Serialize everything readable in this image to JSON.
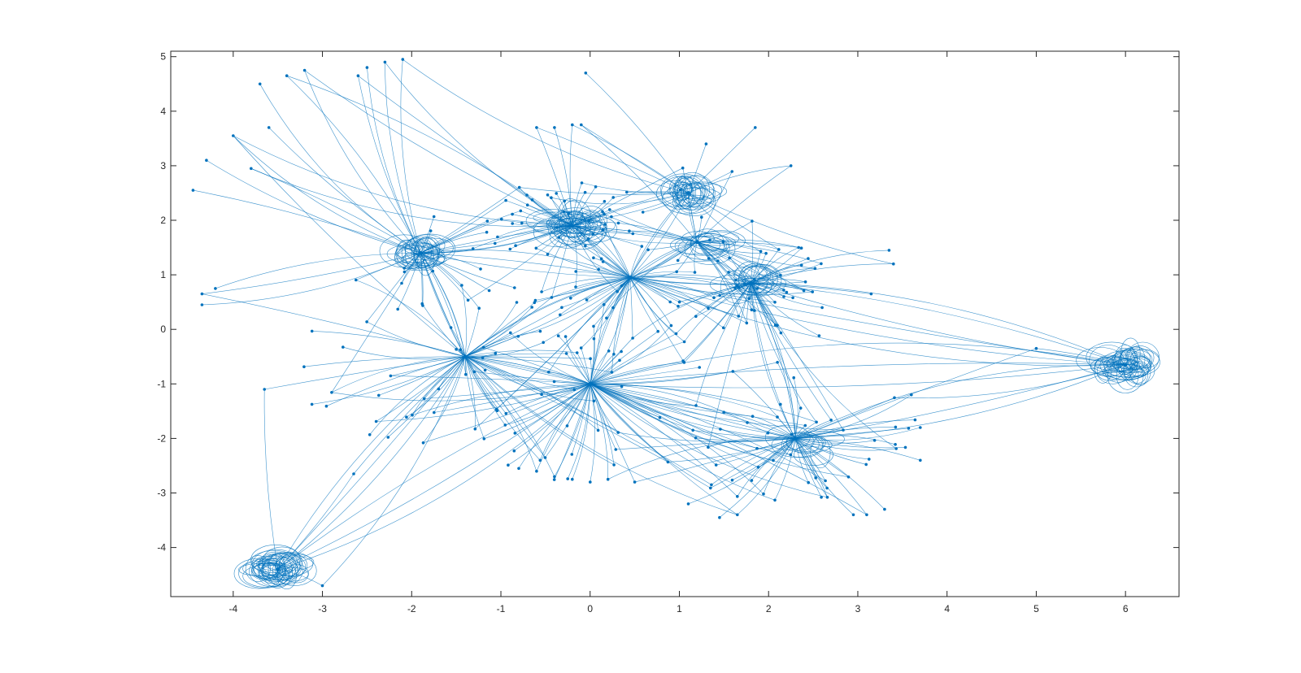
{
  "chart_data": {
    "type": "scatter",
    "title": "",
    "xlabel": "",
    "ylabel": "",
    "xlim": [
      -4.7,
      6.6
    ],
    "ylim": [
      -4.9,
      5.1
    ],
    "xticks": [
      -4,
      -3,
      -2,
      -1,
      0,
      1,
      2,
      3,
      4,
      5,
      6
    ],
    "yticks": [
      5,
      4,
      3,
      2,
      1,
      0,
      -1,
      -2,
      -3,
      -4
    ],
    "grid": false,
    "box": true,
    "edge_color": "#0072BD",
    "node_color": "#0072BD",
    "hubs": [
      {
        "x": 0.45,
        "y": 0.95
      },
      {
        "x": -1.4,
        "y": -0.5
      },
      {
        "x": 0.0,
        "y": -1.0
      },
      {
        "x": 2.3,
        "y": -2.0
      },
      {
        "x": -0.2,
        "y": 1.9
      },
      {
        "x": 1.1,
        "y": 2.5
      },
      {
        "x": -1.9,
        "y": 1.4
      },
      {
        "x": 1.8,
        "y": 0.85
      },
      {
        "x": -3.5,
        "y": -4.4
      },
      {
        "x": 6.0,
        "y": -0.65
      },
      {
        "x": 1.2,
        "y": 1.6
      }
    ],
    "peripheral_nodes": [
      {
        "x": -2.6,
        "y": 4.65
      },
      {
        "x": -2.5,
        "y": 4.8
      },
      {
        "x": -2.3,
        "y": 4.9
      },
      {
        "x": -2.1,
        "y": 4.95
      },
      {
        "x": -3.7,
        "y": 4.5
      },
      {
        "x": -3.4,
        "y": 4.65
      },
      {
        "x": -3.2,
        "y": 4.75
      },
      {
        "x": -0.05,
        "y": 4.7
      },
      {
        "x": -0.6,
        "y": 3.7
      },
      {
        "x": -0.4,
        "y": 3.7
      },
      {
        "x": -0.2,
        "y": 3.75
      },
      {
        "x": -0.1,
        "y": 3.75
      },
      {
        "x": 1.85,
        "y": 3.7
      },
      {
        "x": 2.25,
        "y": 3.0
      },
      {
        "x": 1.3,
        "y": 3.4
      },
      {
        "x": -4.0,
        "y": 3.55
      },
      {
        "x": -4.3,
        "y": 3.1
      },
      {
        "x": -3.8,
        "y": 2.95
      },
      {
        "x": -3.6,
        "y": 3.7
      },
      {
        "x": -4.45,
        "y": 2.55
      },
      {
        "x": -4.35,
        "y": 0.65
      },
      {
        "x": -4.35,
        "y": 0.45
      },
      {
        "x": -4.2,
        "y": 0.75
      },
      {
        "x": -3.65,
        "y": -1.1
      },
      {
        "x": 3.35,
        "y": 1.45
      },
      {
        "x": 3.4,
        "y": 1.2
      },
      {
        "x": 3.15,
        "y": 0.65
      },
      {
        "x": 2.6,
        "y": 0.4
      },
      {
        "x": 5.0,
        "y": -0.35
      },
      {
        "x": 3.6,
        "y": -1.2
      },
      {
        "x": 3.7,
        "y": -1.8
      },
      {
        "x": 3.7,
        "y": -2.4
      },
      {
        "x": -2.65,
        "y": -2.65
      },
      {
        "x": -3.0,
        "y": -4.7
      },
      {
        "x": 1.1,
        "y": -3.2
      },
      {
        "x": 1.45,
        "y": -3.45
      },
      {
        "x": 1.65,
        "y": -3.4
      },
      {
        "x": 2.95,
        "y": -3.4
      },
      {
        "x": 3.1,
        "y": -3.4
      },
      {
        "x": 3.3,
        "y": -3.3
      },
      {
        "x": -0.8,
        "y": -2.55
      },
      {
        "x": -0.6,
        "y": -2.6
      },
      {
        "x": -0.4,
        "y": -2.7
      },
      {
        "x": -0.2,
        "y": -2.75
      },
      {
        "x": 0.0,
        "y": -2.8
      },
      {
        "x": 0.2,
        "y": -2.75
      },
      {
        "x": 0.5,
        "y": -2.8
      }
    ]
  }
}
